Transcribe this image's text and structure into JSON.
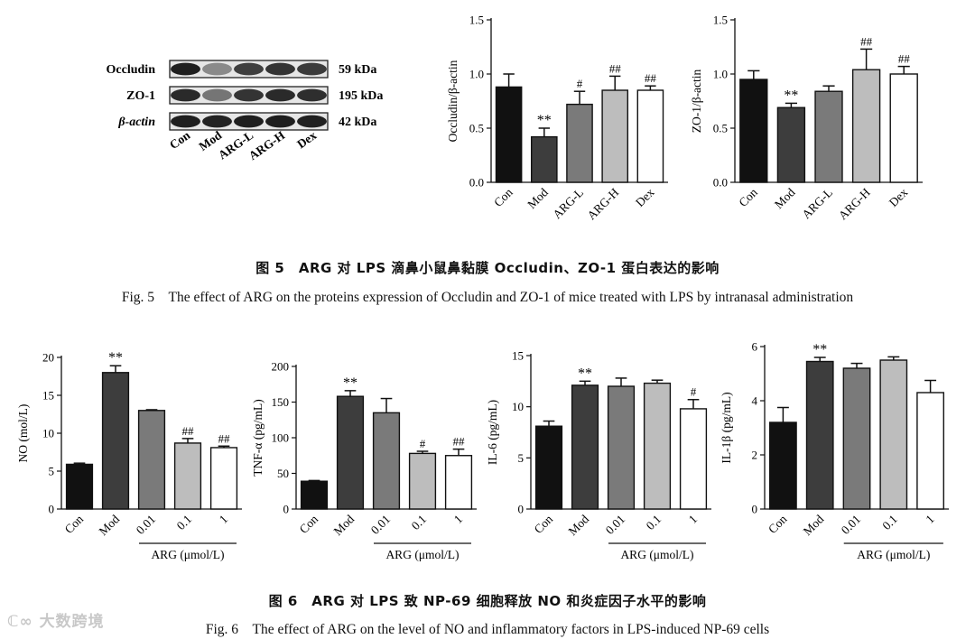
{
  "western_blot": {
    "rows": [
      {
        "label": "Occludin",
        "kda": "59 kDa",
        "intensity": [
          0.95,
          0.45,
          0.8,
          0.85,
          0.82
        ]
      },
      {
        "label": "ZO-1",
        "kda": "195 kDa",
        "intensity": [
          0.9,
          0.55,
          0.85,
          0.9,
          0.88
        ]
      },
      {
        "label": "β-actin",
        "kda": "42 kDa",
        "intensity": [
          0.95,
          0.93,
          0.95,
          0.95,
          0.94
        ]
      }
    ],
    "lanes": [
      "Con",
      "Mod",
      "ARG-L",
      "ARG-H",
      "Dex"
    ]
  },
  "chart_data": [
    {
      "id": "occludin",
      "type": "bar",
      "ylabel": "Occludin/β-actin",
      "ylim": [
        0,
        1.5
      ],
      "ticks": [
        "0.0",
        "0.5",
        "1.0",
        "1.5"
      ],
      "tick_values": [
        0,
        0.5,
        1.0,
        1.5
      ],
      "categories": [
        "Con",
        "Mod",
        "ARG-L",
        "ARG-H",
        "Dex"
      ],
      "values": [
        0.88,
        0.42,
        0.72,
        0.85,
        0.85
      ],
      "errors": [
        0.12,
        0.08,
        0.12,
        0.13,
        0.04
      ],
      "annotations": [
        "",
        "**",
        "#",
        "##",
        "##"
      ]
    },
    {
      "id": "zo1",
      "type": "bar",
      "ylabel": "ZO-1/β-actin",
      "ylim": [
        0,
        1.5
      ],
      "ticks": [
        "0.0",
        "0.5",
        "1.0",
        "1.5"
      ],
      "tick_values": [
        0,
        0.5,
        1.0,
        1.5
      ],
      "categories": [
        "Con",
        "Mod",
        "ARG-L",
        "ARG-H",
        "Dex"
      ],
      "values": [
        0.95,
        0.69,
        0.84,
        1.04,
        1.0
      ],
      "errors": [
        0.08,
        0.04,
        0.05,
        0.19,
        0.07
      ],
      "annotations": [
        "",
        "**",
        "",
        "##",
        "##"
      ]
    },
    {
      "id": "no",
      "type": "bar",
      "ylabel": "NO (mol/L)",
      "ylim": [
        0,
        20
      ],
      "ticks": [
        "0",
        "5",
        "10",
        "15",
        "20"
      ],
      "tick_values": [
        0,
        5,
        10,
        15,
        20
      ],
      "categories": [
        "Con",
        "Mod",
        "0.01",
        "0.1",
        "1"
      ],
      "values": [
        5.9,
        18.0,
        13.0,
        8.7,
        8.1
      ],
      "errors": [
        0.15,
        0.9,
        0.1,
        0.6,
        0.2
      ],
      "annotations": [
        "",
        "**",
        "",
        "##",
        "##"
      ],
      "group_label": "ARG (μmol/L)"
    },
    {
      "id": "tnf",
      "type": "bar",
      "ylabel": "TNF-α (pg/mL)",
      "ylim": [
        0,
        200
      ],
      "ticks": [
        "0",
        "50",
        "100",
        "150",
        "200"
      ],
      "tick_values": [
        0,
        50,
        100,
        150,
        200
      ],
      "categories": [
        "Con",
        "Mod",
        "0.01",
        "0.1",
        "1"
      ],
      "values": [
        39,
        158,
        135,
        78,
        75
      ],
      "errors": [
        1,
        8,
        20,
        3,
        9
      ],
      "annotations": [
        "",
        "**",
        "",
        "#",
        "##"
      ],
      "group_label": "ARG (μmol/L)"
    },
    {
      "id": "il6",
      "type": "bar",
      "ylabel": "IL-6 (pg/mL)",
      "ylim": [
        0,
        15
      ],
      "ticks": [
        "0",
        "5",
        "10",
        "15"
      ],
      "tick_values": [
        0,
        5,
        10,
        15
      ],
      "categories": [
        "Con",
        "Mod",
        "0.01",
        "0.1",
        "1"
      ],
      "values": [
        8.1,
        12.1,
        12.0,
        12.3,
        9.8
      ],
      "errors": [
        0.5,
        0.4,
        0.8,
        0.3,
        0.9
      ],
      "annotations": [
        "",
        "**",
        "",
        "",
        "#"
      ],
      "group_label": "ARG (μmol/L)"
    },
    {
      "id": "il1b",
      "type": "bar",
      "ylabel": "IL-1β (pg/mL)",
      "ylim": [
        0,
        6
      ],
      "ticks": [
        "0",
        "2",
        "4",
        "6"
      ],
      "tick_values": [
        0,
        2,
        4,
        6
      ],
      "categories": [
        "Con",
        "Mod",
        "0.01",
        "0.1",
        "1"
      ],
      "values": [
        3.2,
        5.45,
        5.2,
        5.5,
        4.3
      ],
      "errors": [
        0.55,
        0.15,
        0.18,
        0.12,
        0.45
      ],
      "annotations": [
        "",
        "**",
        "",
        "",
        ""
      ],
      "group_label": "ARG (μmol/L)"
    }
  ],
  "bar_colors": [
    "#111111",
    "#3d3d3d",
    "#7a7a7a",
    "#bdbdbd",
    "#ffffff"
  ],
  "captions": {
    "fig5_zh": "图 5　ARG 对 LPS 滴鼻小鼠鼻黏膜 Occludin、ZO-1 蛋白表达的影响",
    "fig5_en": "Fig. 5　The effect of ARG on the proteins expression of Occludin and ZO-1 of mice treated with LPS by intranasal administration",
    "fig6_zh": "图 6　ARG 对 LPS 致 NP-69 细胞释放 NO 和炎症因子水平的影响",
    "fig6_en": "Fig. 6　The effect of ARG on the level of NO and inflammatory factors in LPS-induced NP-69 cells"
  },
  "watermark": "大数跨境"
}
